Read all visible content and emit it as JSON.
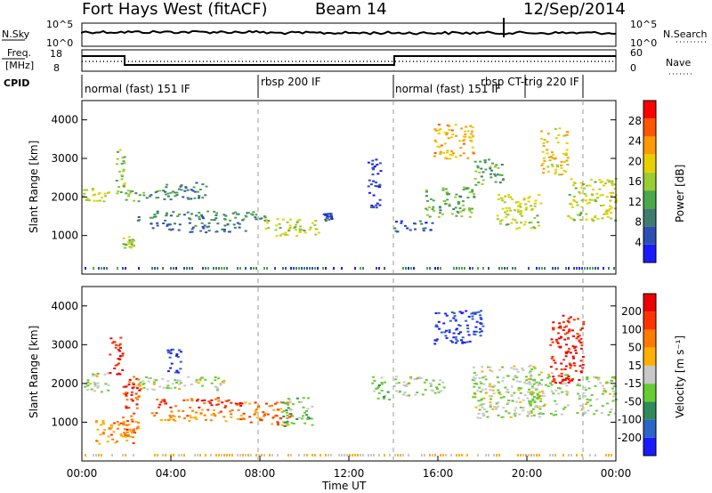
{
  "header": {
    "title_left": "Fort Hays West (fitACF)",
    "title_mid": "Beam 14",
    "title_right": "12/Sep/2014"
  },
  "top_panels": {
    "nsky_label": "N.Sky",
    "nsky_ticks": [
      "10^5",
      "10^0"
    ],
    "nsearch_label": "N.Search",
    "nsearch_ticks": [
      "10^5",
      "10^0"
    ],
    "freq_label_1": "Freq.",
    "freq_label_2": "[MHz]",
    "freq_ticks": [
      "18",
      "8"
    ],
    "nave_label": "Nave",
    "nave_ticks": [
      "60",
      "0"
    ],
    "cpid_label": "CPID",
    "cpid_segments": [
      "normal (fast) 151 IF",
      "rbsp 200 IF",
      "normal (fast) 151 IF",
      "rbsp CT-trig 220 IF"
    ]
  },
  "chart_data": [
    {
      "type": "heatmap",
      "name": "power",
      "ylabel": "Slant Range [km]",
      "xlim": [
        0,
        24
      ],
      "ylim": [
        0,
        4500
      ],
      "y_ticks": [
        "1000",
        "2000",
        "3000",
        "4000"
      ],
      "colorbar_label": "Power [dB]",
      "colorbar_ticks": [
        "28",
        "24",
        "20",
        "16",
        "12",
        "8",
        "4"
      ],
      "colors": [
        "#1a1aff",
        "#2c4fb4",
        "#3e7d6e",
        "#4aa84a",
        "#9acd32",
        "#e8d000",
        "#ff9a00",
        "#ff5500",
        "#ff0000"
      ],
      "features": [
        {
          "t0": 0.0,
          "t1": 1.6,
          "r0": 1900,
          "r1": 2250,
          "lvl": 0.55
        },
        {
          "t0": 1.5,
          "t1": 1.9,
          "r0": 2000,
          "r1": 3300,
          "lvl": 0.45
        },
        {
          "t0": 1.8,
          "t1": 2.4,
          "r0": 700,
          "r1": 1000,
          "lvl": 0.5
        },
        {
          "t0": 1.9,
          "t1": 3.6,
          "r0": 1900,
          "r1": 2200,
          "lvl": 0.4
        },
        {
          "t0": 2.4,
          "t1": 8.4,
          "r0": 1400,
          "r1": 1650,
          "lvl": 0.3
        },
        {
          "t0": 3.6,
          "t1": 5.7,
          "r0": 1950,
          "r1": 2400,
          "lvl": 0.25
        },
        {
          "t0": 3.0,
          "t1": 7.5,
          "r0": 1100,
          "r1": 1350,
          "lvl": 0.2
        },
        {
          "t0": 8.2,
          "t1": 10.6,
          "r0": 1000,
          "r1": 1450,
          "lvl": 0.55
        },
        {
          "t0": 10.8,
          "t1": 11.2,
          "r0": 1400,
          "r1": 1600,
          "lvl": 0.1
        },
        {
          "t0": 12.8,
          "t1": 13.4,
          "r0": 1700,
          "r1": 3000,
          "lvl": 0.1
        },
        {
          "t0": 14.0,
          "t1": 15.8,
          "r0": 1100,
          "r1": 1400,
          "lvl": 0.15
        },
        {
          "t0": 15.4,
          "t1": 17.6,
          "r0": 1500,
          "r1": 2300,
          "lvl": 0.4
        },
        {
          "t0": 15.8,
          "t1": 17.6,
          "r0": 3000,
          "r1": 3900,
          "lvl": 0.7
        },
        {
          "t0": 17.6,
          "t1": 18.9,
          "r0": 2300,
          "r1": 3000,
          "lvl": 0.35
        },
        {
          "t0": 18.6,
          "t1": 20.6,
          "r0": 1200,
          "r1": 2100,
          "lvl": 0.55
        },
        {
          "t0": 20.6,
          "t1": 21.8,
          "r0": 2600,
          "r1": 3800,
          "lvl": 0.65
        },
        {
          "t0": 21.8,
          "t1": 24.0,
          "r0": 1400,
          "r1": 2500,
          "lvl": 0.55
        }
      ]
    },
    {
      "type": "heatmap",
      "name": "velocity",
      "ylabel": "Slant Range [km]",
      "xlabel": "Time UT",
      "xlim": [
        0,
        24
      ],
      "ylim": [
        0,
        4500
      ],
      "x_ticks": [
        "00:00",
        "04:00",
        "08:00",
        "12:00",
        "16:00",
        "20:00",
        "00:00"
      ],
      "y_ticks": [
        "1000",
        "2000",
        "3000",
        "4000"
      ],
      "colorbar_label": "Velocity [m s⁻¹]",
      "colorbar_ticks": [
        "200",
        "100",
        "50",
        "15",
        "-15",
        "-50",
        "-100",
        "-200"
      ],
      "colors": [
        "#1a1aff",
        "#2c64c8",
        "#2e8b57",
        "#66cc33",
        "#c8c8c8",
        "#ffb000",
        "#ff7a00",
        "#ff3300",
        "#ee0000"
      ],
      "features": [
        {
          "t0": 0.0,
          "t1": 1.3,
          "r0": 1800,
          "r1": 2300,
          "lvl": 0.45
        },
        {
          "t0": 1.2,
          "t1": 1.8,
          "r0": 2200,
          "r1": 3300,
          "lvl": 0.95
        },
        {
          "t0": 1.8,
          "t1": 2.6,
          "r0": 600,
          "r1": 2200,
          "lvl": 0.85
        },
        {
          "t0": 2.4,
          "t1": 6.5,
          "r0": 1850,
          "r1": 2200,
          "lvl": 0.45
        },
        {
          "t0": 3.0,
          "t1": 7.2,
          "r0": 1400,
          "r1": 1650,
          "lvl": 0.9
        },
        {
          "t0": 3.0,
          "t1": 7.2,
          "r0": 1050,
          "r1": 1350,
          "lvl": 0.7
        },
        {
          "t0": 0.5,
          "t1": 2.6,
          "r0": 450,
          "r1": 1100,
          "lvl": 0.7
        },
        {
          "t0": 3.8,
          "t1": 4.4,
          "r0": 2300,
          "r1": 2900,
          "lvl": 0.05
        },
        {
          "t0": 7.2,
          "t1": 9.4,
          "r0": 900,
          "r1": 1550,
          "lvl": 0.75
        },
        {
          "t0": 9.0,
          "t1": 10.3,
          "r0": 900,
          "r1": 1700,
          "lvl": 0.35
        },
        {
          "t0": 13.0,
          "t1": 13.8,
          "r0": 1600,
          "r1": 2200,
          "lvl": 0.4
        },
        {
          "t0": 14.0,
          "t1": 16.3,
          "r0": 1700,
          "r1": 2200,
          "lvl": 0.45
        },
        {
          "t0": 15.8,
          "t1": 18.0,
          "r0": 3000,
          "r1": 3900,
          "lvl": 0.05
        },
        {
          "t0": 17.5,
          "t1": 20.6,
          "r0": 1100,
          "r1": 2500,
          "lvl": 0.45
        },
        {
          "t0": 20.0,
          "t1": 21.8,
          "r0": 1200,
          "r1": 2300,
          "lvl": 0.45
        },
        {
          "t0": 21.0,
          "t1": 22.5,
          "r0": 2000,
          "r1": 3800,
          "lvl": 0.95
        },
        {
          "t0": 22.2,
          "t1": 24.0,
          "r0": 1200,
          "r1": 2200,
          "lvl": 0.45
        }
      ]
    }
  ]
}
